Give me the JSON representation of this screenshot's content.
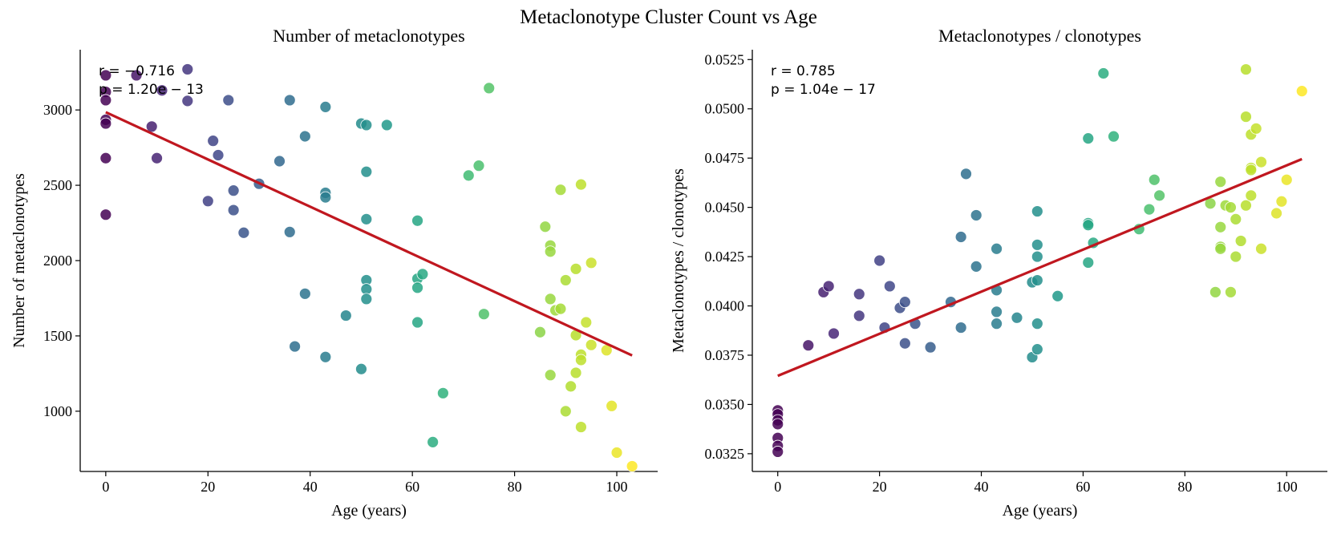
{
  "figure": {
    "suptitle": "Metaclonotype Cluster Count vs Age"
  },
  "colors": {
    "regression_line": "#c0171f",
    "colormap": "viridis",
    "axis": "#000000"
  },
  "chart_data": [
    {
      "type": "scatter",
      "title": "Number of metaclonotypes",
      "xlabel": "Age (years)",
      "ylabel": "Number of metaclonotypes",
      "xlim": [
        -5,
        108
      ],
      "ylim": [
        600,
        3400
      ],
      "xticks": [
        0,
        20,
        40,
        60,
        80,
        100
      ],
      "yticks": [
        1000,
        1500,
        2000,
        2500,
        3000
      ],
      "ytick_labels": [
        "1000",
        "1500",
        "2000",
        "2500",
        "3000"
      ],
      "grid": false,
      "annotation": [
        "r = −0.716",
        "p = 1.20e − 13"
      ],
      "color_encoding": "age (viridis)",
      "regression": {
        "x": [
          0,
          103
        ],
        "y": [
          2985,
          1370
        ]
      },
      "points": [
        [
          0,
          3230
        ],
        [
          0,
          3120
        ],
        [
          0,
          3065
        ],
        [
          0,
          2935
        ],
        [
          0,
          2910
        ],
        [
          0,
          2680
        ],
        [
          0,
          2305
        ],
        [
          6,
          3230
        ],
        [
          9,
          2890
        ],
        [
          10,
          2680
        ],
        [
          11,
          3130
        ],
        [
          16,
          3270
        ],
        [
          16,
          3060
        ],
        [
          20,
          2395
        ],
        [
          21,
          2795
        ],
        [
          22,
          2700
        ],
        [
          24,
          3065
        ],
        [
          25,
          2465
        ],
        [
          25,
          2335
        ],
        [
          27,
          2185
        ],
        [
          30,
          2510
        ],
        [
          34,
          2660
        ],
        [
          36,
          3065
        ],
        [
          36,
          2190
        ],
        [
          37,
          1430
        ],
        [
          39,
          2825
        ],
        [
          39,
          1780
        ],
        [
          43,
          3020
        ],
        [
          43,
          2450
        ],
        [
          43,
          2420
        ],
        [
          43,
          1360
        ],
        [
          47,
          1635
        ],
        [
          50,
          2910
        ],
        [
          50,
          1280
        ],
        [
          51,
          2900
        ],
        [
          51,
          2590
        ],
        [
          51,
          2275
        ],
        [
          51,
          1870
        ],
        [
          51,
          1810
        ],
        [
          51,
          1745
        ],
        [
          55,
          2900
        ],
        [
          61,
          2265
        ],
        [
          61,
          1880
        ],
        [
          61,
          1820
        ],
        [
          61,
          1590
        ],
        [
          62,
          1910
        ],
        [
          64,
          795
        ],
        [
          66,
          1120
        ],
        [
          71,
          2565
        ],
        [
          73,
          2630
        ],
        [
          74,
          1645
        ],
        [
          75,
          3145
        ],
        [
          85,
          1525
        ],
        [
          86,
          2225
        ],
        [
          87,
          2100
        ],
        [
          87,
          2060
        ],
        [
          87,
          1745
        ],
        [
          87,
          1240
        ],
        [
          88,
          1670
        ],
        [
          89,
          2470
        ],
        [
          89,
          1680
        ],
        [
          90,
          1870
        ],
        [
          90,
          1000
        ],
        [
          91,
          1165
        ],
        [
          92,
          1945
        ],
        [
          92,
          1505
        ],
        [
          92,
          1255
        ],
        [
          93,
          2505
        ],
        [
          93,
          1375
        ],
        [
          93,
          1340
        ],
        [
          93,
          895
        ],
        [
          94,
          1590
        ],
        [
          95,
          1985
        ],
        [
          95,
          1440
        ],
        [
          98,
          1405
        ],
        [
          99,
          1035
        ],
        [
          100,
          725
        ],
        [
          103,
          635
        ]
      ]
    },
    {
      "type": "scatter",
      "title": "Metaclonotypes / clonotypes",
      "xlabel": "Age (years)",
      "ylabel": "Metaclonotypes / clonotypes",
      "xlim": [
        -5,
        108
      ],
      "ylim": [
        0.0316,
        0.053
      ],
      "xticks": [
        0,
        20,
        40,
        60,
        80,
        100
      ],
      "yticks": [
        0.0325,
        0.035,
        0.0375,
        0.04,
        0.0425,
        0.045,
        0.0475,
        0.05,
        0.0525
      ],
      "ytick_labels": [
        "0.0325",
        "0.0350",
        "0.0375",
        "0.0400",
        "0.0425",
        "0.0450",
        "0.0475",
        "0.0500",
        "0.0525"
      ],
      "grid": false,
      "annotation": [
        "r = 0.785",
        "p = 1.04e − 17"
      ],
      "color_encoding": "age (viridis)",
      "regression": {
        "x": [
          0,
          103
        ],
        "y": [
          0.03645,
          0.04745
        ]
      },
      "points": [
        [
          0,
          0.0347
        ],
        [
          0,
          0.0345
        ],
        [
          0,
          0.0342
        ],
        [
          0,
          0.034
        ],
        [
          0,
          0.0333
        ],
        [
          0,
          0.0329
        ],
        [
          0,
          0.0326
        ],
        [
          6,
          0.038
        ],
        [
          9,
          0.0407
        ],
        [
          10,
          0.041
        ],
        [
          11,
          0.0386
        ],
        [
          16,
          0.0406
        ],
        [
          16,
          0.0395
        ],
        [
          20,
          0.0423
        ],
        [
          21,
          0.0389
        ],
        [
          22,
          0.041
        ],
        [
          24,
          0.0399
        ],
        [
          25,
          0.0402
        ],
        [
          25,
          0.0381
        ],
        [
          27,
          0.0391
        ],
        [
          30,
          0.0379
        ],
        [
          34,
          0.0402
        ],
        [
          36,
          0.0435
        ],
        [
          36,
          0.0389
        ],
        [
          37,
          0.0467
        ],
        [
          39,
          0.0446
        ],
        [
          39,
          0.042
        ],
        [
          43,
          0.0429
        ],
        [
          43,
          0.0408
        ],
        [
          43,
          0.0397
        ],
        [
          43,
          0.0391
        ],
        [
          47,
          0.0394
        ],
        [
          50,
          0.0412
        ],
        [
          50,
          0.0374
        ],
        [
          51,
          0.0448
        ],
        [
          51,
          0.0431
        ],
        [
          51,
          0.0425
        ],
        [
          51,
          0.0413
        ],
        [
          51,
          0.0391
        ],
        [
          51,
          0.0378
        ],
        [
          55,
          0.0405
        ],
        [
          61,
          0.0485
        ],
        [
          61,
          0.0442
        ],
        [
          61,
          0.0441
        ],
        [
          61,
          0.0422
        ],
        [
          62,
          0.0432
        ],
        [
          64,
          0.0518
        ],
        [
          66,
          0.0486
        ],
        [
          71,
          0.0439
        ],
        [
          73,
          0.0449
        ],
        [
          74,
          0.0464
        ],
        [
          75,
          0.0456
        ],
        [
          85,
          0.0452
        ],
        [
          86,
          0.0407
        ],
        [
          87,
          0.0463
        ],
        [
          87,
          0.044
        ],
        [
          87,
          0.043
        ],
        [
          87,
          0.0429
        ],
        [
          88,
          0.0451
        ],
        [
          89,
          0.045
        ],
        [
          89,
          0.0407
        ],
        [
          90,
          0.0444
        ],
        [
          90,
          0.0425
        ],
        [
          91,
          0.0433
        ],
        [
          92,
          0.052
        ],
        [
          92,
          0.0496
        ],
        [
          92,
          0.0451
        ],
        [
          93,
          0.0487
        ],
        [
          93,
          0.047
        ],
        [
          93,
          0.0469
        ],
        [
          93,
          0.0456
        ],
        [
          94,
          0.049
        ],
        [
          95,
          0.0473
        ],
        [
          95,
          0.0429
        ],
        [
          98,
          0.0447
        ],
        [
          99,
          0.0453
        ],
        [
          100,
          0.0464
        ],
        [
          103,
          0.0509
        ]
      ]
    }
  ]
}
